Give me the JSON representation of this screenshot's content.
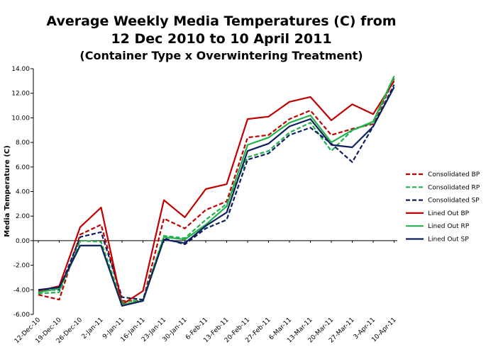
{
  "chart_data": {
    "type": "line",
    "title_line1": "Average Weekly Media Temperatures (C) from",
    "title_line2": "12 Dec 2010 to 10 April 2011",
    "subtitle": "(Container Type x Overwintering Treatment)",
    "xlabel": "",
    "ylabel": "Media Temperature (C)",
    "ylim": [
      -6,
      14
    ],
    "y_ticks": [
      "-6.00",
      "-4.00",
      "-2.00",
      "0.00",
      "2.00",
      "4.00",
      "6.00",
      "8.00",
      "10.00",
      "12.00",
      "14.00"
    ],
    "legend_position": "right",
    "categories": [
      "12-Dec-10",
      "19-Dec-10",
      "26-Dec-10",
      "2-Jan-11",
      "9-Jan-11",
      "16-Jan-11",
      "23-Jan-11",
      "30-Jan-11",
      "6-Feb-11",
      "13-Feb-11",
      "20-Feb-11",
      "27-Feb-11",
      "6-Mar-11",
      "13-Mar-11",
      "20-Mar-11",
      "27-Mar-11",
      "3-Apr-11",
      "10-Apr-11"
    ],
    "series": [
      {
        "name": "Consolidated BP",
        "color": "#c00000",
        "dashed": true,
        "values": [
          -4.4,
          -4.8,
          0.5,
          1.3,
          -4.9,
          -4.9,
          1.8,
          1.0,
          2.5,
          3.2,
          8.4,
          8.6,
          9.9,
          10.6,
          8.6,
          9.1,
          9.5,
          13.2
        ]
      },
      {
        "name": "Consolidated RP",
        "color": "#22b14c",
        "dashed": true,
        "values": [
          -4.3,
          -4.2,
          0.0,
          -0.1,
          -5.0,
          -4.8,
          0.4,
          0.2,
          1.7,
          3.0,
          6.8,
          7.3,
          8.8,
          9.6,
          7.3,
          9.0,
          9.6,
          13.3
        ]
      },
      {
        "name": "Consolidated SP",
        "color": "#0d1f5c",
        "dashed": true,
        "values": [
          -4.0,
          -4.0,
          0.3,
          0.7,
          -4.6,
          -4.8,
          0.2,
          -0.3,
          1.0,
          1.7,
          6.6,
          7.1,
          8.6,
          9.2,
          7.9,
          6.4,
          9.3,
          12.7
        ]
      },
      {
        "name": "Lined Out BP",
        "color": "#c00000",
        "dashed": false,
        "values": [
          -4.1,
          -3.7,
          1.1,
          2.7,
          -5.2,
          -4.1,
          3.3,
          1.9,
          4.2,
          4.6,
          9.9,
          10.1,
          11.3,
          11.7,
          9.8,
          11.1,
          10.3,
          13.0
        ]
      },
      {
        "name": "Lined Out RP",
        "color": "#22b14c",
        "dashed": false,
        "values": [
          -4.2,
          -3.9,
          -0.4,
          -0.4,
          -5.2,
          -4.9,
          0.3,
          0.1,
          1.3,
          2.8,
          7.8,
          8.4,
          9.6,
          10.2,
          8.0,
          9.0,
          9.7,
          13.4
        ]
      },
      {
        "name": "Lined Out SP",
        "color": "#0d1f5c",
        "dashed": false,
        "values": [
          -4.0,
          -3.8,
          -0.4,
          -0.4,
          -5.3,
          -4.9,
          0.1,
          -0.2,
          1.2,
          2.3,
          7.3,
          7.9,
          9.3,
          9.9,
          7.8,
          7.6,
          9.3,
          12.5
        ]
      }
    ]
  }
}
